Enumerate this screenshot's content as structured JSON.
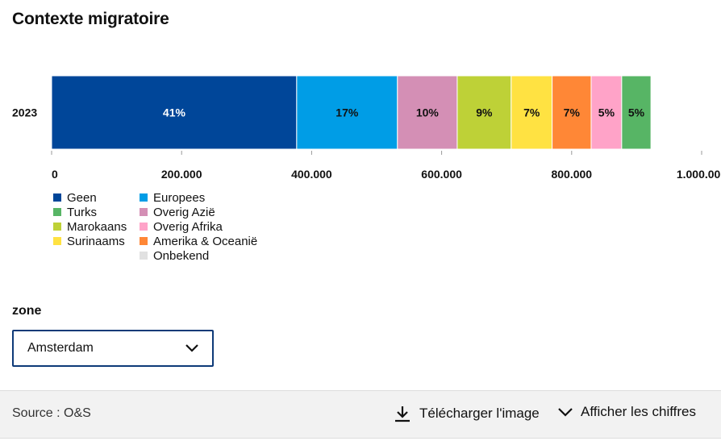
{
  "title": "Contexte migratoire",
  "chart_data": {
    "type": "bar",
    "orientation": "horizontal",
    "stacked": true,
    "categories": [
      "2023"
    ],
    "series": [
      {
        "name": "Geen",
        "values": [
          377000
        ],
        "label": "41%",
        "color": "#004699",
        "label_color": "#ffffff"
      },
      {
        "name": "Europees",
        "values": [
          155000
        ],
        "label": "17%",
        "color": "#009de6",
        "label_color": "#111111"
      },
      {
        "name": "Overig Azië",
        "values": [
          92000
        ],
        "label": "10%",
        "color": "#d48fb5",
        "label_color": "#111111"
      },
      {
        "name": "Marokaans",
        "values": [
          83000
        ],
        "label": "9%",
        "color": "#bed137",
        "label_color": "#111111"
      },
      {
        "name": "Surinaams",
        "values": [
          63000
        ],
        "label": "7%",
        "color": "#ffe242",
        "label_color": "#111111"
      },
      {
        "name": "Amerika & Oceanië",
        "values": [
          60000
        ],
        "label": "7%",
        "color": "#ff8736",
        "label_color": "#111111"
      },
      {
        "name": "Overig Afrika",
        "values": [
          47000
        ],
        "label": "5%",
        "color": "#ffa3c8",
        "label_color": "#111111"
      },
      {
        "name": "Turks",
        "values": [
          45000
        ],
        "label": "5%",
        "color": "#57b565",
        "label_color": "#111111"
      },
      {
        "name": "Onbekend",
        "values": [
          0
        ],
        "label": "",
        "color": "#e1e1e1",
        "label_color": "#111111"
      }
    ],
    "xlim": [
      0,
      1000000
    ],
    "x_ticks": [
      0,
      200000,
      400000,
      600000,
      800000,
      1000000
    ],
    "x_tick_labels": [
      "0",
      "200.000",
      "400.000",
      "600.000",
      "800.000",
      "1.000.000"
    ],
    "legend_position": "bottom-left"
  },
  "legend": [
    {
      "name": "Geen",
      "color": "#004699"
    },
    {
      "name": "Europees",
      "color": "#009de6"
    },
    {
      "name": "Turks",
      "color": "#57b565"
    },
    {
      "name": "Overig Azië",
      "color": "#d48fb5"
    },
    {
      "name": "Marokaans",
      "color": "#bed137"
    },
    {
      "name": "Overig Afrika",
      "color": "#ffa3c8"
    },
    {
      "name": "Surinaams",
      "color": "#ffe242"
    },
    {
      "name": "Amerika & Oceanië",
      "color": "#ff8736"
    },
    {
      "name": "",
      "color": ""
    },
    {
      "name": "Onbekend",
      "color": "#e1e1e1"
    }
  ],
  "filter": {
    "label": "zone",
    "selected": "Amsterdam"
  },
  "footer": {
    "source": "Source : O&S",
    "download_label": "Télécharger l'image",
    "show_figures_label": "Afficher les chiffres"
  }
}
